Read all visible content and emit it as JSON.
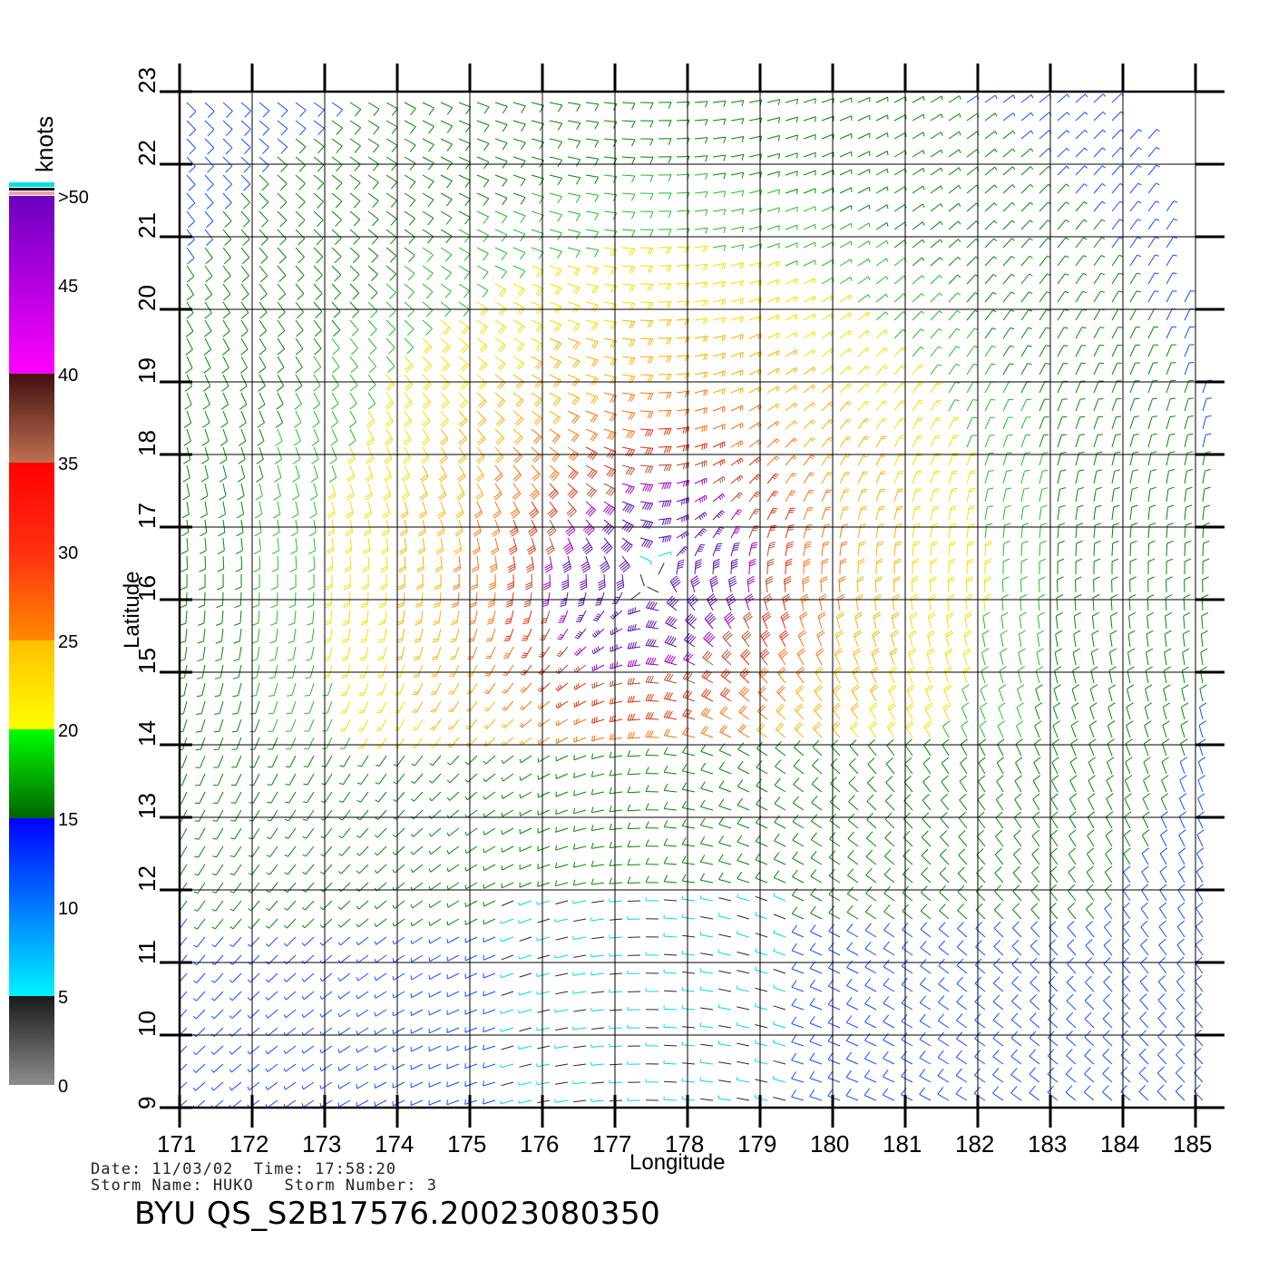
{
  "map": {
    "xlabel": "Longitude",
    "ylabel": "Latitude",
    "lon_range": [
      171,
      185
    ],
    "lat_range": [
      9,
      23
    ],
    "lon_ticks": [
      "171",
      "172",
      "173",
      "174",
      "175",
      "176",
      "177",
      "178",
      "179",
      "180",
      "181",
      "182",
      "183",
      "184",
      "185"
    ],
    "lat_ticks": [
      "9",
      "10",
      "11",
      "12",
      "13",
      "14",
      "15",
      "16",
      "17",
      "18",
      "19",
      "20",
      "21",
      "22",
      "23"
    ],
    "storm_center": {
      "lon": 177.5,
      "lat": 16.3
    },
    "field_type": "wind barbs (speed colored)"
  },
  "legend": {
    "title": "knots",
    "labels": [
      ">50",
      "45",
      "40",
      "35",
      "30",
      "25",
      "20",
      "15",
      "10",
      "5",
      "0"
    ],
    "stops": [
      {
        "speed": 0,
        "color": "#8c8c8c"
      },
      {
        "speed": 5,
        "color": "#1a1a1a"
      },
      {
        "speed": 5,
        "color": "#00f4ff"
      },
      {
        "speed": 15,
        "color": "#0000ff"
      },
      {
        "speed": 15,
        "color": "#006400"
      },
      {
        "speed": 20,
        "color": "#00ff00"
      },
      {
        "speed": 20,
        "color": "#ffff00"
      },
      {
        "speed": 25,
        "color": "#ffc000"
      },
      {
        "speed": 25,
        "color": "#ff8a00"
      },
      {
        "speed": 30,
        "color": "#ff3010"
      },
      {
        "speed": 35,
        "color": "#ff0000"
      },
      {
        "speed": 35,
        "color": "#c07050"
      },
      {
        "speed": 40,
        "color": "#401010"
      },
      {
        "speed": 40,
        "color": "#ff00ff"
      },
      {
        "speed": 50,
        "color": "#6a00c0"
      }
    ]
  },
  "info": {
    "line1": "Date: 11/03/02  Time: 17:58:20",
    "line2": "Storm Name: HUKO   Storm Number: 3"
  },
  "caption": "BYU QS_S2B17576.20023080350"
}
